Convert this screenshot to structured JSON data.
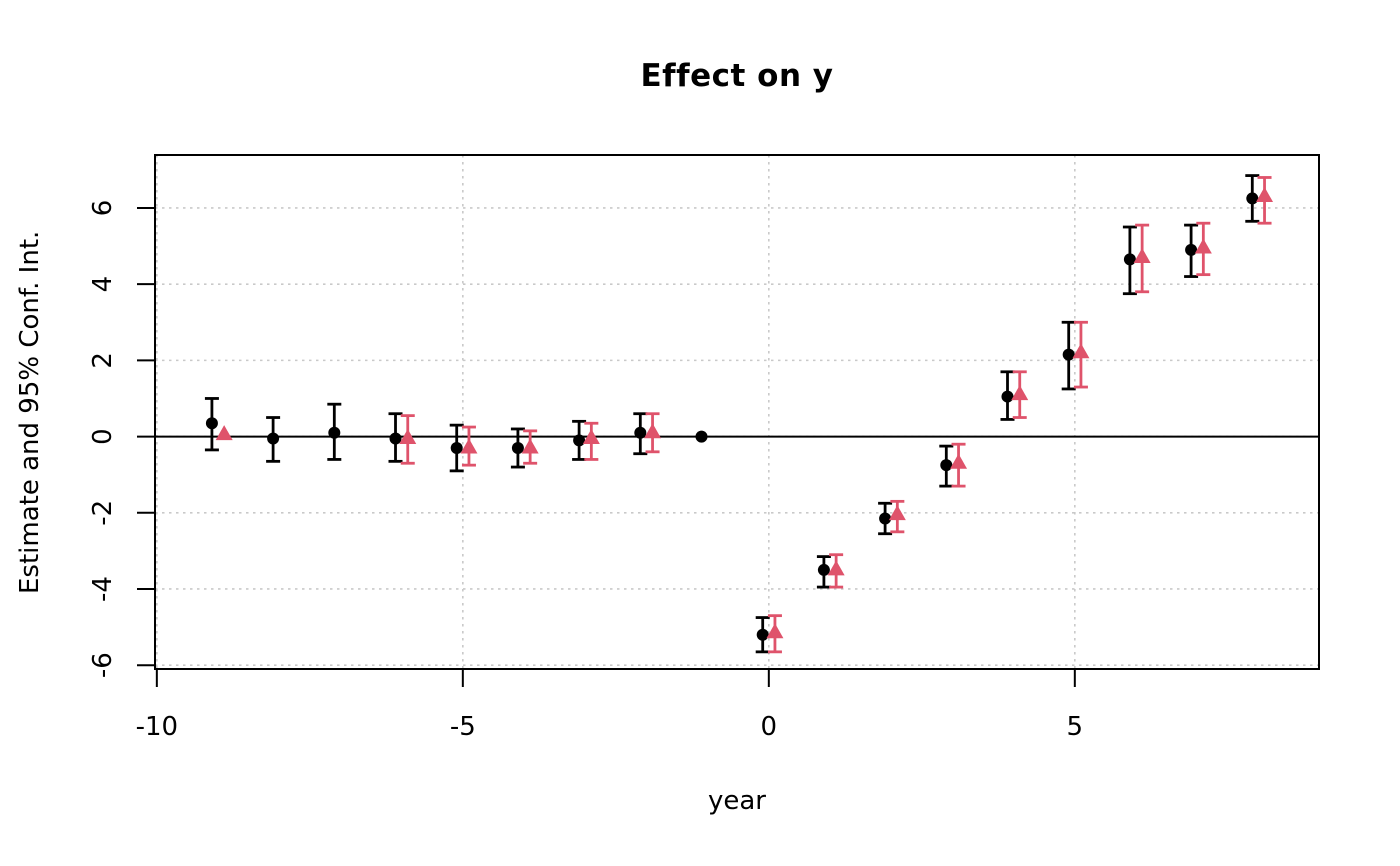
{
  "chart_data": {
    "type": "scatter",
    "title": "Effect on y",
    "xlabel": "year",
    "ylabel": "Estimate and 95% Conf. Int.",
    "xlim": [
      -10.03,
      8.99
    ],
    "ylim": [
      -6.1,
      7.39
    ],
    "x_ticks": [
      -10,
      -5,
      0,
      5
    ],
    "y_ticks": [
      -6,
      -4,
      -2,
      0,
      2,
      4,
      6
    ],
    "grid": "dotted gridlines at all axis ticks, solid horizontal reference line at y=0",
    "legend_position": "none",
    "zero_line": 0,
    "colors": {
      "series_circles": "#000000",
      "series_triangles": "#DF536B",
      "gridline": "#C9C9C9",
      "axis": "#000000"
    },
    "series": [
      {
        "name": "estimate-circles",
        "marker": "circle",
        "color": "#000000",
        "x_jitter": -0.1,
        "points": [
          {
            "year": -9,
            "est": 0.35,
            "lo": -0.35,
            "hi": 1.0
          },
          {
            "year": -8,
            "est": -0.05,
            "lo": -0.65,
            "hi": 0.5
          },
          {
            "year": -7,
            "est": 0.1,
            "lo": -0.6,
            "hi": 0.85
          },
          {
            "year": -6,
            "est": -0.05,
            "lo": -0.65,
            "hi": 0.6
          },
          {
            "year": -5,
            "est": -0.3,
            "lo": -0.9,
            "hi": 0.3
          },
          {
            "year": -4,
            "est": -0.3,
            "lo": -0.8,
            "hi": 0.2
          },
          {
            "year": -3,
            "est": -0.1,
            "lo": -0.6,
            "hi": 0.4
          },
          {
            "year": -2,
            "est": 0.1,
            "lo": -0.45,
            "hi": 0.6
          },
          {
            "year": -1,
            "est": 0.0,
            "lo": null,
            "hi": null
          },
          {
            "year": 0,
            "est": -5.2,
            "lo": -5.65,
            "hi": -4.75
          },
          {
            "year": 1,
            "est": -3.5,
            "lo": -3.95,
            "hi": -3.15
          },
          {
            "year": 2,
            "est": -2.15,
            "lo": -2.55,
            "hi": -1.75
          },
          {
            "year": 3,
            "est": -0.75,
            "lo": -1.3,
            "hi": -0.25
          },
          {
            "year": 4,
            "est": 1.05,
            "lo": 0.45,
            "hi": 1.7
          },
          {
            "year": 5,
            "est": 2.15,
            "lo": 1.25,
            "hi": 3.0
          },
          {
            "year": 6,
            "est": 4.65,
            "lo": 3.75,
            "hi": 5.5
          },
          {
            "year": 7,
            "est": 4.9,
            "lo": 4.2,
            "hi": 5.55
          },
          {
            "year": 8,
            "est": 6.25,
            "lo": 5.65,
            "hi": 6.85
          }
        ]
      },
      {
        "name": "estimate-triangles",
        "marker": "triangle",
        "color": "#DF536B",
        "x_jitter": 0.1,
        "points": [
          {
            "year": -9,
            "est": 0.05,
            "lo": null,
            "hi": null
          },
          {
            "year": -6,
            "est": -0.05,
            "lo": -0.7,
            "hi": 0.55
          },
          {
            "year": -5,
            "est": -0.3,
            "lo": -0.75,
            "hi": 0.25
          },
          {
            "year": -4,
            "est": -0.3,
            "lo": -0.7,
            "hi": 0.15
          },
          {
            "year": -3,
            "est": -0.05,
            "lo": -0.6,
            "hi": 0.35
          },
          {
            "year": -2,
            "est": 0.1,
            "lo": -0.4,
            "hi": 0.6
          },
          {
            "year": 0,
            "est": -5.15,
            "lo": -5.65,
            "hi": -4.7
          },
          {
            "year": 1,
            "est": -3.5,
            "lo": -3.95,
            "hi": -3.1
          },
          {
            "year": 2,
            "est": -2.05,
            "lo": -2.5,
            "hi": -1.7
          },
          {
            "year": 3,
            "est": -0.7,
            "lo": -1.3,
            "hi": -0.2
          },
          {
            "year": 4,
            "est": 1.1,
            "lo": 0.5,
            "hi": 1.7
          },
          {
            "year": 5,
            "est": 2.2,
            "lo": 1.3,
            "hi": 3.0
          },
          {
            "year": 6,
            "est": 4.7,
            "lo": 3.8,
            "hi": 5.55
          },
          {
            "year": 7,
            "est": 4.95,
            "lo": 4.25,
            "hi": 5.6
          },
          {
            "year": 8,
            "est": 6.3,
            "lo": 5.6,
            "hi": 6.8
          }
        ]
      }
    ]
  }
}
